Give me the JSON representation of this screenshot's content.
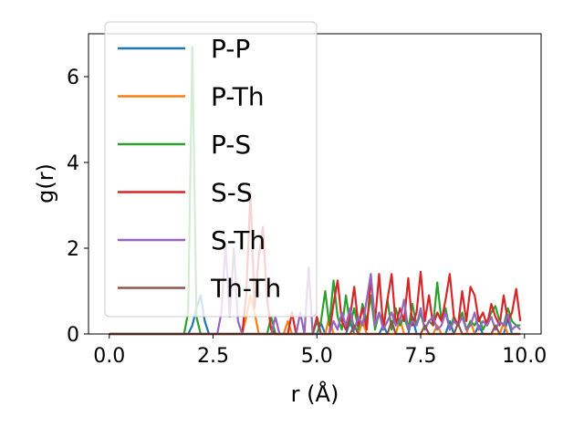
{
  "chart_data": {
    "type": "line",
    "xlabel": "r (Å)",
    "ylabel": "g(r)",
    "xlim": [
      -0.5,
      10.4
    ],
    "ylim": [
      0,
      7.0
    ],
    "xticks": [
      0.0,
      2.5,
      5.0,
      7.5,
      10.0
    ],
    "xtick_labels": [
      "0.0",
      "2.5",
      "5.0",
      "7.5",
      "10.0"
    ],
    "yticks": [
      0,
      2,
      4,
      6
    ],
    "ytick_labels": [
      "0",
      "2",
      "4",
      "6"
    ],
    "grid": false,
    "legend_position": "upper-left",
    "series": [
      {
        "name": "P-P",
        "color": "#1f77b4",
        "points": [
          [
            0,
            0
          ],
          [
            1.9,
            0
          ],
          [
            2.0,
            0.2
          ],
          [
            2.1,
            0.6
          ],
          [
            2.2,
            0.9
          ],
          [
            2.3,
            0.3
          ],
          [
            2.4,
            0
          ],
          [
            5.0,
            0
          ],
          [
            5.1,
            0.25
          ],
          [
            5.2,
            0
          ],
          [
            5.7,
            0
          ],
          [
            5.8,
            0.3
          ],
          [
            5.9,
            0
          ],
          [
            6.5,
            0
          ],
          [
            6.6,
            0.2
          ],
          [
            6.7,
            0
          ],
          [
            7.2,
            0
          ],
          [
            7.3,
            0.4
          ],
          [
            7.4,
            0
          ],
          [
            8.1,
            0
          ],
          [
            8.2,
            0.3
          ],
          [
            8.3,
            0
          ],
          [
            8.8,
            0
          ],
          [
            8.9,
            0.2
          ],
          [
            9.0,
            0
          ],
          [
            9.5,
            0
          ],
          [
            9.6,
            0.35
          ],
          [
            9.7,
            0
          ],
          [
            9.9,
            0
          ]
        ]
      },
      {
        "name": "P-Th",
        "color": "#ff7f0e",
        "points": [
          [
            0,
            0
          ],
          [
            3.2,
            0
          ],
          [
            3.3,
            0.4
          ],
          [
            3.4,
            0.9
          ],
          [
            3.5,
            0.5
          ],
          [
            3.6,
            0
          ],
          [
            4.2,
            0
          ],
          [
            4.3,
            0.3
          ],
          [
            4.4,
            0
          ],
          [
            5.2,
            0
          ],
          [
            5.3,
            0.4
          ],
          [
            5.4,
            0
          ],
          [
            6.0,
            0
          ],
          [
            6.1,
            0.3
          ],
          [
            6.2,
            0
          ],
          [
            6.9,
            0
          ],
          [
            7.0,
            0.35
          ],
          [
            7.1,
            0
          ],
          [
            7.8,
            0
          ],
          [
            7.9,
            0.2
          ],
          [
            8.0,
            0
          ],
          [
            8.6,
            0
          ],
          [
            8.7,
            0.3
          ],
          [
            8.8,
            0
          ],
          [
            9.4,
            0
          ],
          [
            9.5,
            0.25
          ],
          [
            9.6,
            0
          ],
          [
            9.9,
            0
          ]
        ]
      },
      {
        "name": "P-S",
        "color": "#2ca02c",
        "points": [
          [
            0,
            0
          ],
          [
            1.8,
            0
          ],
          [
            1.9,
            0.5
          ],
          [
            2.0,
            6.7
          ],
          [
            2.1,
            0.4
          ],
          [
            2.2,
            0
          ],
          [
            3.8,
            0
          ],
          [
            3.9,
            0.4
          ],
          [
            4.0,
            0
          ],
          [
            5.0,
            0
          ],
          [
            5.1,
            0.3
          ],
          [
            5.2,
            1.0
          ],
          [
            5.3,
            0.2
          ],
          [
            5.4,
            1.25
          ],
          [
            5.5,
            0.4
          ],
          [
            5.6,
            0.1
          ],
          [
            5.7,
            0.9
          ],
          [
            5.8,
            0.2
          ],
          [
            5.9,
            0.6
          ],
          [
            6.0,
            0.1
          ],
          [
            6.1,
            0.7
          ],
          [
            6.2,
            0.3
          ],
          [
            6.3,
            0.9
          ],
          [
            6.4,
            0.1
          ],
          [
            6.5,
            0.5
          ],
          [
            6.6,
            0.2
          ],
          [
            6.7,
            0.8
          ],
          [
            6.8,
            0.1
          ],
          [
            6.9,
            0.6
          ],
          [
            7.0,
            0.2
          ],
          [
            7.1,
            0.4
          ],
          [
            7.2,
            0.1
          ],
          [
            7.3,
            0.7
          ],
          [
            7.4,
            0.2
          ],
          [
            7.5,
            0.5
          ],
          [
            7.6,
            0.1
          ],
          [
            7.7,
            0.3
          ],
          [
            7.8,
            0.2
          ],
          [
            7.9,
            1.2
          ],
          [
            8.0,
            0.3
          ],
          [
            8.1,
            0.6
          ],
          [
            8.2,
            0.1
          ],
          [
            8.3,
            0.4
          ],
          [
            8.4,
            0.2
          ],
          [
            8.5,
            0.5
          ],
          [
            8.6,
            0.1
          ],
          [
            8.7,
            0.3
          ],
          [
            8.8,
            0.2
          ],
          [
            8.9,
            0.4
          ],
          [
            9.0,
            0.1
          ],
          [
            9.1,
            0.3
          ],
          [
            9.2,
            0.5
          ],
          [
            9.3,
            0.65
          ],
          [
            9.4,
            0.3
          ],
          [
            9.5,
            0.2
          ],
          [
            9.6,
            0.6
          ],
          [
            9.7,
            0.3
          ],
          [
            9.8,
            0.2
          ],
          [
            9.9,
            0.2
          ]
        ]
      },
      {
        "name": "S-S",
        "color": "#d62728",
        "points": [
          [
            0,
            0
          ],
          [
            3.2,
            0
          ],
          [
            3.3,
            0.9
          ],
          [
            3.4,
            3.3
          ],
          [
            3.5,
            0.6
          ],
          [
            3.6,
            1.8
          ],
          [
            3.7,
            2.5
          ],
          [
            3.8,
            0.8
          ],
          [
            3.9,
            0.1
          ],
          [
            4.0,
            0
          ],
          [
            4.3,
            0
          ],
          [
            4.4,
            0.5
          ],
          [
            4.5,
            0
          ],
          [
            4.9,
            0
          ],
          [
            5.0,
            0.4
          ],
          [
            5.1,
            0
          ],
          [
            5.3,
            0
          ],
          [
            5.4,
            0.7
          ],
          [
            5.5,
            1.25
          ],
          [
            5.6,
            0.3
          ],
          [
            5.7,
            0.1
          ],
          [
            5.8,
            0.4
          ],
          [
            5.9,
            1.1
          ],
          [
            6.0,
            0.2
          ],
          [
            6.1,
            0.6
          ],
          [
            6.2,
            0.1
          ],
          [
            6.3,
            1.3
          ],
          [
            6.4,
            0.3
          ],
          [
            6.5,
            1.4
          ],
          [
            6.6,
            0.1
          ],
          [
            6.7,
            0.8
          ],
          [
            6.8,
            1.4
          ],
          [
            6.9,
            0.2
          ],
          [
            7.0,
            0.6
          ],
          [
            7.1,
            0.3
          ],
          [
            7.2,
            1.3
          ],
          [
            7.3,
            0.2
          ],
          [
            7.4,
            0.5
          ],
          [
            7.5,
            1.45
          ],
          [
            7.6,
            0.3
          ],
          [
            7.7,
            0.9
          ],
          [
            7.8,
            0.2
          ],
          [
            7.9,
            0.5
          ],
          [
            8.0,
            0.3
          ],
          [
            8.1,
            0.8
          ],
          [
            8.2,
            1.4
          ],
          [
            8.3,
            0.4
          ],
          [
            8.4,
            0.2
          ],
          [
            8.5,
            1.0
          ],
          [
            8.6,
            0.3
          ],
          [
            8.7,
            1.1
          ],
          [
            8.8,
            0.9
          ],
          [
            8.9,
            0.3
          ],
          [
            9.0,
            0.5
          ],
          [
            9.1,
            0.2
          ],
          [
            9.2,
            0.7
          ],
          [
            9.3,
            0.4
          ],
          [
            9.4,
            0.2
          ],
          [
            9.5,
            0.9
          ],
          [
            9.6,
            0.3
          ],
          [
            9.7,
            0.5
          ],
          [
            9.8,
            1.05
          ],
          [
            9.9,
            0.3
          ]
        ]
      },
      {
        "name": "S-Th",
        "color": "#9467bd",
        "points": [
          [
            0,
            0
          ],
          [
            2.6,
            0
          ],
          [
            2.7,
            0.5
          ],
          [
            2.8,
            2.1
          ],
          [
            2.9,
            0.4
          ],
          [
            3.0,
            2.0
          ],
          [
            3.1,
            0.3
          ],
          [
            3.2,
            0
          ],
          [
            3.9,
            0
          ],
          [
            4.0,
            0.4
          ],
          [
            4.1,
            0
          ],
          [
            4.5,
            0
          ],
          [
            4.6,
            0.5
          ],
          [
            4.7,
            0
          ],
          [
            4.8,
            1.55
          ],
          [
            4.9,
            0
          ],
          [
            5.3,
            0
          ],
          [
            5.4,
            0.3
          ],
          [
            5.5,
            0.1
          ],
          [
            5.6,
            0.5
          ],
          [
            5.7,
            0.2
          ],
          [
            5.8,
            0.6
          ],
          [
            5.9,
            0.1
          ],
          [
            6.0,
            0.4
          ],
          [
            6.1,
            0.2
          ],
          [
            6.2,
            0.8
          ],
          [
            6.3,
            1.4
          ],
          [
            6.4,
            0.2
          ],
          [
            6.5,
            0.5
          ],
          [
            6.6,
            0.1
          ],
          [
            6.7,
            0.3
          ],
          [
            6.8,
            0.5
          ],
          [
            6.9,
            0.2
          ],
          [
            7.0,
            0.3
          ],
          [
            7.1,
            0.8
          ],
          [
            7.2,
            0.1
          ],
          [
            7.3,
            0.3
          ],
          [
            7.4,
            0.2
          ],
          [
            7.5,
            0.6
          ],
          [
            7.6,
            0.1
          ],
          [
            7.7,
            0.3
          ],
          [
            7.8,
            0.4
          ],
          [
            7.9,
            0.1
          ],
          [
            8.0,
            0.2
          ],
          [
            8.1,
            0.5
          ],
          [
            8.2,
            0.1
          ],
          [
            8.3,
            0.3
          ],
          [
            8.4,
            0.2
          ],
          [
            8.5,
            0.4
          ],
          [
            8.6,
            0.1
          ],
          [
            8.7,
            0.2
          ],
          [
            8.8,
            0.5
          ],
          [
            8.9,
            0.1
          ],
          [
            9.0,
            0.3
          ],
          [
            9.1,
            0.2
          ],
          [
            9.2,
            0.4
          ],
          [
            9.3,
            0.1
          ],
          [
            9.4,
            0.3
          ],
          [
            9.5,
            0.2
          ],
          [
            9.6,
            0.45
          ],
          [
            9.7,
            0.1
          ],
          [
            9.8,
            0.2
          ],
          [
            9.9,
            0.1
          ]
        ]
      },
      {
        "name": "Th-Th",
        "color": "#8c564b",
        "points": [
          [
            0,
            0
          ],
          [
            4.9,
            0
          ],
          [
            5.0,
            0.3
          ],
          [
            5.1,
            0
          ],
          [
            5.8,
            0
          ],
          [
            5.9,
            0.2
          ],
          [
            6.0,
            0
          ],
          [
            6.7,
            0
          ],
          [
            6.8,
            0.3
          ],
          [
            6.9,
            0
          ],
          [
            7.5,
            0
          ],
          [
            7.6,
            0.2
          ],
          [
            7.7,
            0
          ],
          [
            8.3,
            0
          ],
          [
            8.4,
            0.25
          ],
          [
            8.5,
            0
          ],
          [
            9.2,
            0
          ],
          [
            9.3,
            0.2
          ],
          [
            9.4,
            0
          ],
          [
            9.9,
            0
          ]
        ]
      }
    ]
  }
}
